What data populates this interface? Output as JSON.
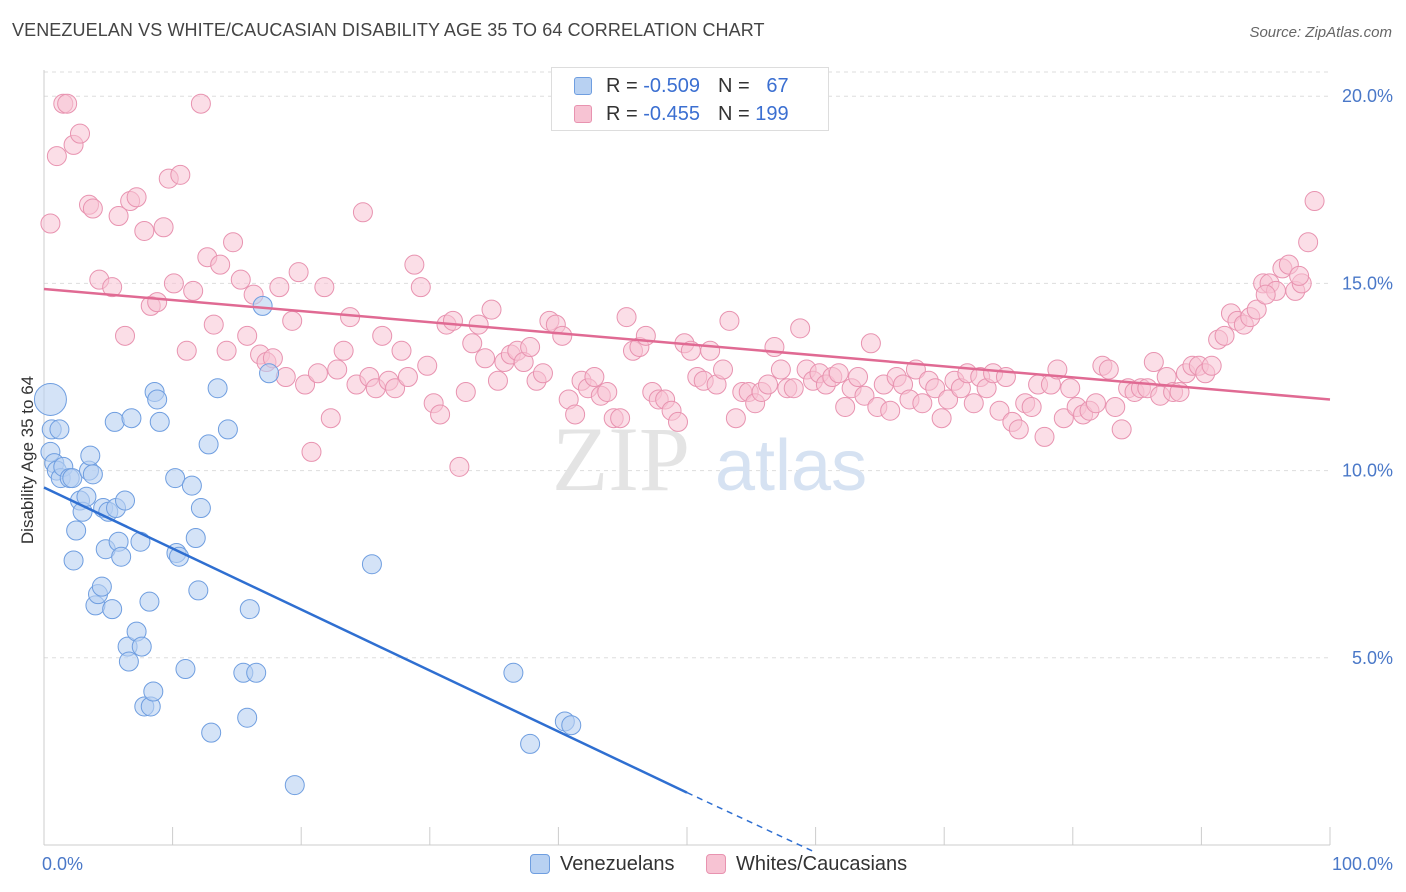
{
  "title": "VENEZUELAN VS WHITE/CAUCASIAN DISABILITY AGE 35 TO 64 CORRELATION CHART",
  "source": "Source: ZipAtlas.com",
  "watermark": {
    "zip": "ZIP",
    "atlas": "atlas"
  },
  "legend": {
    "r_label": "R =",
    "n_label": "N =",
    "series": [
      {
        "r": "-0.509",
        "n": "67"
      },
      {
        "r": "-0.455",
        "n": "199"
      }
    ]
  },
  "bottom_legend": [
    "Venezuelans",
    "Whites/Caucasians"
  ],
  "colors": {
    "blue_fill": "#b8d1f2",
    "blue_stroke": "#6f9ee0",
    "blue_line": "#2f6fd1",
    "pink_fill": "#f7c3d3",
    "pink_stroke": "#e893b0",
    "pink_line": "#e06a93",
    "axis_text": "#4a78c8"
  },
  "chart_data": {
    "type": "scatter",
    "title": "VENEZUELAN VS WHITE/CAUCASIAN DISABILITY AGE 35 TO 64 CORRELATION CHART",
    "xlabel": "",
    "ylabel": "Disability Age 35 to 64",
    "xlim": [
      0,
      100
    ],
    "ylim": [
      0,
      20.7
    ],
    "x_tick_labels": [
      "0.0%",
      "100.0%"
    ],
    "y_ticks": [
      5,
      10,
      15,
      20
    ],
    "y_tick_labels": [
      "5.0%",
      "10.0%",
      "15.0%",
      "20.0%"
    ],
    "grid": true,
    "series": [
      {
        "name": "Venezuelans",
        "r": -0.509,
        "n": 67,
        "trend": {
          "x0": 0,
          "y0": 9.55,
          "x1": 50,
          "y1": 1.4,
          "dash_to_x": 60,
          "dash_to_y": -0.2
        },
        "points": [
          [
            0.5,
            11.9
          ],
          [
            0.5,
            10.5
          ],
          [
            0.6,
            11.1
          ],
          [
            0.8,
            10.2
          ],
          [
            1.2,
            11.1
          ],
          [
            1.0,
            10.0
          ],
          [
            1.3,
            9.8
          ],
          [
            1.5,
            10.1
          ],
          [
            2.0,
            9.8
          ],
          [
            2.2,
            9.8
          ],
          [
            2.3,
            7.6
          ],
          [
            2.5,
            8.4
          ],
          [
            2.8,
            9.2
          ],
          [
            3.0,
            8.9
          ],
          [
            3.3,
            9.3
          ],
          [
            3.5,
            10.0
          ],
          [
            3.6,
            10.4
          ],
          [
            3.8,
            9.9
          ],
          [
            4.0,
            6.4
          ],
          [
            4.2,
            6.7
          ],
          [
            4.5,
            6.9
          ],
          [
            4.6,
            9.0
          ],
          [
            4.8,
            7.9
          ],
          [
            5.0,
            8.9
          ],
          [
            5.3,
            6.3
          ],
          [
            5.5,
            11.3
          ],
          [
            5.6,
            9.0
          ],
          [
            5.8,
            8.1
          ],
          [
            6.0,
            7.7
          ],
          [
            6.3,
            9.2
          ],
          [
            6.5,
            5.3
          ],
          [
            6.6,
            4.9
          ],
          [
            6.8,
            11.4
          ],
          [
            7.2,
            5.7
          ],
          [
            7.5,
            8.1
          ],
          [
            7.6,
            5.3
          ],
          [
            7.8,
            3.7
          ],
          [
            8.2,
            6.5
          ],
          [
            8.3,
            3.7
          ],
          [
            8.5,
            4.1
          ],
          [
            8.6,
            12.1
          ],
          [
            8.8,
            11.9
          ],
          [
            9.0,
            11.3
          ],
          [
            10.2,
            9.8
          ],
          [
            10.3,
            7.8
          ],
          [
            10.5,
            7.7
          ],
          [
            11.0,
            4.7
          ],
          [
            11.5,
            9.6
          ],
          [
            11.8,
            8.2
          ],
          [
            12.0,
            6.8
          ],
          [
            12.2,
            9.0
          ],
          [
            12.8,
            10.7
          ],
          [
            13.0,
            3.0
          ],
          [
            13.5,
            12.2
          ],
          [
            14.3,
            11.1
          ],
          [
            15.5,
            4.6
          ],
          [
            15.8,
            3.4
          ],
          [
            16.0,
            6.3
          ],
          [
            16.5,
            4.6
          ],
          [
            17.0,
            14.4
          ],
          [
            17.5,
            12.6
          ],
          [
            19.5,
            1.6
          ],
          [
            25.5,
            7.5
          ],
          [
            36.5,
            4.6
          ],
          [
            37.8,
            2.7
          ],
          [
            40.5,
            3.3
          ],
          [
            41.0,
            3.2
          ]
        ]
      },
      {
        "name": "Whites/Caucasians",
        "r": -0.455,
        "n": 199,
        "trend": {
          "x0": 0,
          "y0": 14.85,
          "x1": 100,
          "y1": 11.9
        },
        "points": [
          [
            0.5,
            16.6
          ],
          [
            1.0,
            18.4
          ],
          [
            1.5,
            19.8
          ],
          [
            1.8,
            19.8
          ],
          [
            2.3,
            18.7
          ],
          [
            2.8,
            19.0
          ],
          [
            3.5,
            17.1
          ],
          [
            3.8,
            17.0
          ],
          [
            4.3,
            15.1
          ],
          [
            5.3,
            14.9
          ],
          [
            5.8,
            16.8
          ],
          [
            6.3,
            13.6
          ],
          [
            6.7,
            17.2
          ],
          [
            7.2,
            17.3
          ],
          [
            7.8,
            16.4
          ],
          [
            8.3,
            14.4
          ],
          [
            8.8,
            14.5
          ],
          [
            9.3,
            16.5
          ],
          [
            9.7,
            17.8
          ],
          [
            10.1,
            15.0
          ],
          [
            10.6,
            17.9
          ],
          [
            11.1,
            13.2
          ],
          [
            11.6,
            14.8
          ],
          [
            12.2,
            19.8
          ],
          [
            12.7,
            15.7
          ],
          [
            13.2,
            13.9
          ],
          [
            13.7,
            15.5
          ],
          [
            14.2,
            13.2
          ],
          [
            14.7,
            16.1
          ],
          [
            15.3,
            15.1
          ],
          [
            15.8,
            13.6
          ],
          [
            16.3,
            14.7
          ],
          [
            16.8,
            13.1
          ],
          [
            17.3,
            12.9
          ],
          [
            17.8,
            13.0
          ],
          [
            18.3,
            14.9
          ],
          [
            18.8,
            12.5
          ],
          [
            19.3,
            14.0
          ],
          [
            19.8,
            15.3
          ],
          [
            20.3,
            12.3
          ],
          [
            20.8,
            10.5
          ],
          [
            21.3,
            12.6
          ],
          [
            21.8,
            14.9
          ],
          [
            22.3,
            11.4
          ],
          [
            22.8,
            12.7
          ],
          [
            23.3,
            13.2
          ],
          [
            23.8,
            14.1
          ],
          [
            24.3,
            12.3
          ],
          [
            24.8,
            16.9
          ],
          [
            25.3,
            12.5
          ],
          [
            25.8,
            12.2
          ],
          [
            26.3,
            13.6
          ],
          [
            26.8,
            12.4
          ],
          [
            27.3,
            12.2
          ],
          [
            27.8,
            13.2
          ],
          [
            28.3,
            12.5
          ],
          [
            28.8,
            15.5
          ],
          [
            29.3,
            14.9
          ],
          [
            29.8,
            12.8
          ],
          [
            30.3,
            11.8
          ],
          [
            30.8,
            11.5
          ],
          [
            31.3,
            13.9
          ],
          [
            31.8,
            14.0
          ],
          [
            32.3,
            10.1
          ],
          [
            32.8,
            12.1
          ],
          [
            33.3,
            13.4
          ],
          [
            33.8,
            13.9
          ],
          [
            34.3,
            13.0
          ],
          [
            34.8,
            14.3
          ],
          [
            35.3,
            12.4
          ],
          [
            35.8,
            12.9
          ],
          [
            36.3,
            13.1
          ],
          [
            36.8,
            13.2
          ],
          [
            37.3,
            12.9
          ],
          [
            37.8,
            13.3
          ],
          [
            38.3,
            12.4
          ],
          [
            38.8,
            12.6
          ],
          [
            39.3,
            14.0
          ],
          [
            39.8,
            13.9
          ],
          [
            40.3,
            13.6
          ],
          [
            40.8,
            11.9
          ],
          [
            41.3,
            11.5
          ],
          [
            41.8,
            12.4
          ],
          [
            42.3,
            12.2
          ],
          [
            42.8,
            12.5
          ],
          [
            43.3,
            12.0
          ],
          [
            43.8,
            12.1
          ],
          [
            44.3,
            11.4
          ],
          [
            44.8,
            11.4
          ],
          [
            45.3,
            14.1
          ],
          [
            45.8,
            13.2
          ],
          [
            46.3,
            13.3
          ],
          [
            46.8,
            13.6
          ],
          [
            47.3,
            12.1
          ],
          [
            47.8,
            11.9
          ],
          [
            48.3,
            11.9
          ],
          [
            48.8,
            11.6
          ],
          [
            49.3,
            11.3
          ],
          [
            49.8,
            13.4
          ],
          [
            50.3,
            13.2
          ],
          [
            50.8,
            12.5
          ],
          [
            51.3,
            12.4
          ],
          [
            51.8,
            13.2
          ],
          [
            52.3,
            12.3
          ],
          [
            52.8,
            12.7
          ],
          [
            53.3,
            14.0
          ],
          [
            53.8,
            11.4
          ],
          [
            54.3,
            12.1
          ],
          [
            54.8,
            12.1
          ],
          [
            55.3,
            11.8
          ],
          [
            55.8,
            12.1
          ],
          [
            56.3,
            12.3
          ],
          [
            56.8,
            13.3
          ],
          [
            57.3,
            12.7
          ],
          [
            57.8,
            12.2
          ],
          [
            58.3,
            12.2
          ],
          [
            58.8,
            13.8
          ],
          [
            59.3,
            12.7
          ],
          [
            59.8,
            12.4
          ],
          [
            60.3,
            12.6
          ],
          [
            60.8,
            12.3
          ],
          [
            61.3,
            12.5
          ],
          [
            61.8,
            12.6
          ],
          [
            62.3,
            11.7
          ],
          [
            62.8,
            12.2
          ],
          [
            63.3,
            12.5
          ],
          [
            63.8,
            12.0
          ],
          [
            64.3,
            13.4
          ],
          [
            64.8,
            11.7
          ],
          [
            65.3,
            12.3
          ],
          [
            65.8,
            11.6
          ],
          [
            66.3,
            12.5
          ],
          [
            66.8,
            12.3
          ],
          [
            67.3,
            11.9
          ],
          [
            67.8,
            12.7
          ],
          [
            68.3,
            11.8
          ],
          [
            68.8,
            12.4
          ],
          [
            69.3,
            12.2
          ],
          [
            69.8,
            11.4
          ],
          [
            70.3,
            11.9
          ],
          [
            70.8,
            12.4
          ],
          [
            71.3,
            12.2
          ],
          [
            71.8,
            12.6
          ],
          [
            72.3,
            11.8
          ],
          [
            72.8,
            12.5
          ],
          [
            73.3,
            12.2
          ],
          [
            73.8,
            12.6
          ],
          [
            74.3,
            11.6
          ],
          [
            74.8,
            12.5
          ],
          [
            75.3,
            11.3
          ],
          [
            75.8,
            11.1
          ],
          [
            76.3,
            11.8
          ],
          [
            76.8,
            11.7
          ],
          [
            77.3,
            12.3
          ],
          [
            77.8,
            10.9
          ],
          [
            78.3,
            12.3
          ],
          [
            78.8,
            12.7
          ],
          [
            79.3,
            11.4
          ],
          [
            79.8,
            12.2
          ],
          [
            80.3,
            11.7
          ],
          [
            80.8,
            11.5
          ],
          [
            81.3,
            11.6
          ],
          [
            81.8,
            11.8
          ],
          [
            82.3,
            12.8
          ],
          [
            82.8,
            12.7
          ],
          [
            83.3,
            11.7
          ],
          [
            83.8,
            11.1
          ],
          [
            84.3,
            12.2
          ],
          [
            84.8,
            12.1
          ],
          [
            85.3,
            12.2
          ],
          [
            85.8,
            12.2
          ],
          [
            86.3,
            12.9
          ],
          [
            86.8,
            12.0
          ],
          [
            87.3,
            12.5
          ],
          [
            87.8,
            12.1
          ],
          [
            88.3,
            12.1
          ],
          [
            88.8,
            12.6
          ],
          [
            89.3,
            12.8
          ],
          [
            89.8,
            12.8
          ],
          [
            90.3,
            12.6
          ],
          [
            90.8,
            12.8
          ],
          [
            91.3,
            13.5
          ],
          [
            91.8,
            13.6
          ],
          [
            92.3,
            14.2
          ],
          [
            92.8,
            14.0
          ],
          [
            93.3,
            13.9
          ],
          [
            93.8,
            14.1
          ],
          [
            94.3,
            14.3
          ],
          [
            94.8,
            15.0
          ],
          [
            95.3,
            15.0
          ],
          [
            95.8,
            14.8
          ],
          [
            96.3,
            15.4
          ],
          [
            96.8,
            15.5
          ],
          [
            97.3,
            14.8
          ],
          [
            97.8,
            15.0
          ],
          [
            98.3,
            16.1
          ],
          [
            98.8,
            17.2
          ],
          [
            97.6,
            15.2
          ],
          [
            95.0,
            14.7
          ]
        ]
      }
    ]
  }
}
